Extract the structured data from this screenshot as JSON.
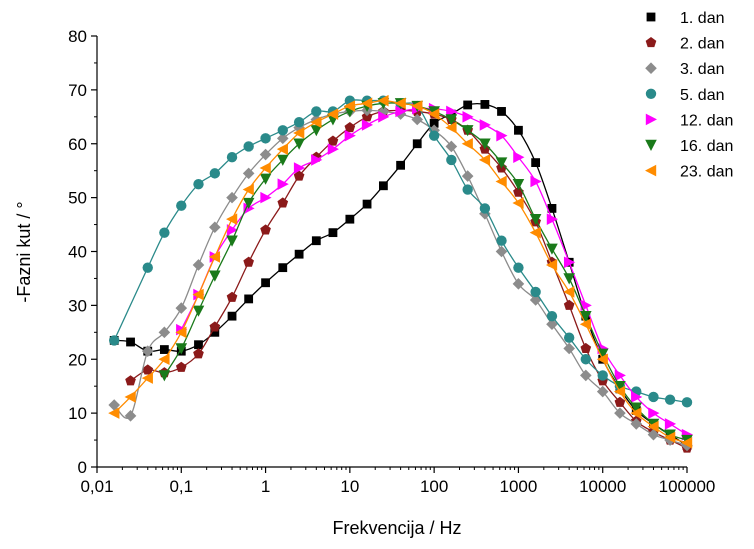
{
  "chart_data": {
    "type": "scatter",
    "xlabel": "Frekvencija / Hz",
    "ylabel": "-Fazni kut / °",
    "x_scale": "log",
    "xlim": [
      0.01,
      100000
    ],
    "ylim": [
      0,
      80
    ],
    "x_ticks": [
      {
        "value": 0.01,
        "label": "0,01"
      },
      {
        "value": 0.1,
        "label": "0,1"
      },
      {
        "value": 1,
        "label": "1"
      },
      {
        "value": 10,
        "label": "10"
      },
      {
        "value": 100,
        "label": "100"
      },
      {
        "value": 1000,
        "label": "1000"
      },
      {
        "value": 10000,
        "label": "10000"
      },
      {
        "value": 100000,
        "label": "100000"
      }
    ],
    "y_ticks": [
      0,
      10,
      20,
      30,
      40,
      50,
      60,
      70,
      80
    ],
    "legend_position": "top-right",
    "series": [
      {
        "name": "1. dan",
        "marker": "square",
        "color": "#000000",
        "points": [
          [
            0.016,
            23.5
          ],
          [
            0.025,
            23.2
          ],
          [
            0.04,
            21.5
          ],
          [
            0.063,
            21.8
          ],
          [
            0.1,
            21.5
          ],
          [
            0.16,
            22.7
          ],
          [
            0.25,
            25
          ],
          [
            0.4,
            28
          ],
          [
            0.63,
            31.2
          ],
          [
            1,
            34.2
          ],
          [
            1.6,
            37
          ],
          [
            2.5,
            39.5
          ],
          [
            4,
            42
          ],
          [
            6.3,
            43.5
          ],
          [
            10,
            46
          ],
          [
            16,
            48.8
          ],
          [
            25,
            52.2
          ],
          [
            40,
            56
          ],
          [
            63,
            60
          ],
          [
            100,
            63.8
          ],
          [
            160,
            65.5
          ],
          [
            250,
            67.2
          ],
          [
            400,
            67.3
          ],
          [
            630,
            66
          ],
          [
            1000,
            62.5
          ],
          [
            1600,
            56.5
          ],
          [
            2500,
            48
          ],
          [
            4000,
            38
          ],
          [
            6300,
            28
          ],
          [
            10000,
            20
          ],
          [
            16000,
            14.5
          ],
          [
            25000,
            10.5
          ],
          [
            40000,
            8
          ],
          [
            63000,
            6
          ],
          [
            100000,
            4
          ]
        ]
      },
      {
        "name": "2. dan",
        "marker": "pentagon",
        "color": "#8b1a1a",
        "points": [
          [
            0.025,
            16
          ],
          [
            0.04,
            18
          ],
          [
            0.063,
            17.5
          ],
          [
            0.1,
            18.5
          ],
          [
            0.16,
            21
          ],
          [
            0.25,
            26
          ],
          [
            0.4,
            31.5
          ],
          [
            0.63,
            38
          ],
          [
            1,
            44
          ],
          [
            1.6,
            49
          ],
          [
            2.5,
            54
          ],
          [
            4,
            57.5
          ],
          [
            6.3,
            60.5
          ],
          [
            10,
            63
          ],
          [
            16,
            65
          ],
          [
            25,
            66
          ],
          [
            40,
            66.2
          ],
          [
            63,
            66
          ],
          [
            100,
            65.5
          ],
          [
            160,
            64.5
          ],
          [
            250,
            62.5
          ],
          [
            400,
            59
          ],
          [
            630,
            55.5
          ],
          [
            1000,
            51
          ],
          [
            1600,
            45.5
          ],
          [
            2500,
            38
          ],
          [
            4000,
            30
          ],
          [
            6300,
            22
          ],
          [
            10000,
            16
          ],
          [
            16000,
            12
          ],
          [
            25000,
            8.5
          ],
          [
            40000,
            6.5
          ],
          [
            63000,
            5
          ],
          [
            100000,
            3.5
          ]
        ]
      },
      {
        "name": "3. dan",
        "marker": "diamond",
        "color": "#8c8c8c",
        "points": [
          [
            0.016,
            11.5
          ],
          [
            0.025,
            9.5
          ],
          [
            0.04,
            21.5
          ],
          [
            0.063,
            25
          ],
          [
            0.1,
            29.5
          ],
          [
            0.16,
            37.5
          ],
          [
            0.25,
            44.5
          ],
          [
            0.4,
            50
          ],
          [
            0.63,
            54.5
          ],
          [
            1,
            58
          ],
          [
            1.6,
            61
          ],
          [
            2.5,
            63
          ],
          [
            4,
            64.5
          ],
          [
            6.3,
            65.5
          ],
          [
            10,
            66
          ],
          [
            16,
            66.2
          ],
          [
            25,
            66
          ],
          [
            40,
            65.5
          ],
          [
            63,
            64.5
          ],
          [
            100,
            62.5
          ],
          [
            160,
            59.5
          ],
          [
            250,
            54
          ],
          [
            400,
            47
          ],
          [
            630,
            40
          ],
          [
            1000,
            34
          ],
          [
            1600,
            31
          ],
          [
            2500,
            26.5
          ],
          [
            4000,
            22
          ],
          [
            6300,
            17
          ],
          [
            10000,
            14
          ],
          [
            16000,
            10
          ],
          [
            25000,
            8
          ],
          [
            40000,
            6
          ],
          [
            63000,
            5
          ],
          [
            100000,
            4
          ]
        ]
      },
      {
        "name": "5. dan",
        "marker": "circle",
        "color": "#2a8a8a",
        "points": [
          [
            0.016,
            23.5
          ],
          [
            0.04,
            37
          ],
          [
            0.063,
            43.5
          ],
          [
            0.1,
            48.5
          ],
          [
            0.16,
            52.5
          ],
          [
            0.25,
            54.5
          ],
          [
            0.4,
            57.5
          ],
          [
            0.63,
            59.5
          ],
          [
            1,
            61
          ],
          [
            1.6,
            62.5
          ],
          [
            2.5,
            64
          ],
          [
            4,
            66
          ],
          [
            6.3,
            66
          ],
          [
            10,
            68
          ],
          [
            16,
            68
          ],
          [
            25,
            68
          ],
          [
            40,
            67.5
          ],
          [
            63,
            67
          ],
          [
            100,
            61.5
          ],
          [
            160,
            57
          ],
          [
            250,
            51.5
          ],
          [
            400,
            48
          ],
          [
            630,
            42
          ],
          [
            1000,
            37
          ],
          [
            1600,
            32.5
          ],
          [
            2500,
            28
          ],
          [
            4000,
            24
          ],
          [
            6300,
            20
          ],
          [
            10000,
            17
          ],
          [
            16000,
            15
          ],
          [
            25000,
            14
          ],
          [
            40000,
            13
          ],
          [
            63000,
            12.5
          ],
          [
            100000,
            12
          ]
        ]
      },
      {
        "name": "12. dan",
        "marker": "triangle-right",
        "color": "#ff00ff",
        "points": [
          [
            0.1,
            25.5
          ],
          [
            0.16,
            32
          ],
          [
            0.25,
            39
          ],
          [
            0.4,
            44
          ],
          [
            0.63,
            48
          ],
          [
            1,
            50
          ],
          [
            1.6,
            52.5
          ],
          [
            2.5,
            55.5
          ],
          [
            4,
            57
          ],
          [
            6.3,
            59
          ],
          [
            10,
            61.5
          ],
          [
            16,
            63.5
          ],
          [
            25,
            65
          ],
          [
            40,
            66
          ],
          [
            63,
            66.5
          ],
          [
            100,
            66.5
          ],
          [
            160,
            66
          ],
          [
            250,
            65
          ],
          [
            400,
            63.5
          ],
          [
            630,
            61.5
          ],
          [
            1000,
            57.5
          ],
          [
            1600,
            53
          ],
          [
            2500,
            46
          ],
          [
            4000,
            38
          ],
          [
            6300,
            30
          ],
          [
            10000,
            22
          ],
          [
            16000,
            17
          ],
          [
            25000,
            13
          ],
          [
            40000,
            10
          ],
          [
            63000,
            8
          ],
          [
            100000,
            6
          ]
        ]
      },
      {
        "name": "16. dan",
        "marker": "triangle-down",
        "color": "#1a7a1a",
        "points": [
          [
            0.063,
            17
          ],
          [
            0.1,
            22
          ],
          [
            0.16,
            29
          ],
          [
            0.25,
            35.5
          ],
          [
            0.4,
            42
          ],
          [
            0.63,
            49
          ],
          [
            1,
            53.5
          ],
          [
            1.6,
            57
          ],
          [
            2.5,
            60
          ],
          [
            4,
            62.5
          ],
          [
            6.3,
            64.5
          ],
          [
            10,
            66
          ],
          [
            16,
            67
          ],
          [
            25,
            67.5
          ],
          [
            40,
            67.5
          ],
          [
            63,
            67
          ],
          [
            100,
            66
          ],
          [
            160,
            64.5
          ],
          [
            250,
            62.5
          ],
          [
            400,
            60
          ],
          [
            630,
            56.5
          ],
          [
            1000,
            52.5
          ],
          [
            1600,
            46
          ],
          [
            2500,
            40.5
          ],
          [
            4000,
            35
          ],
          [
            6300,
            28
          ],
          [
            10000,
            21
          ],
          [
            16000,
            15
          ],
          [
            25000,
            11
          ],
          [
            40000,
            8
          ],
          [
            63000,
            6
          ],
          [
            100000,
            5
          ]
        ]
      },
      {
        "name": "23. dan",
        "marker": "triangle-left",
        "color": "#ff8c00",
        "points": [
          [
            0.016,
            10
          ],
          [
            0.025,
            13
          ],
          [
            0.04,
            16.5
          ],
          [
            0.063,
            20
          ],
          [
            0.1,
            25
          ],
          [
            0.16,
            32
          ],
          [
            0.25,
            39
          ],
          [
            0.4,
            46
          ],
          [
            0.63,
            51.5
          ],
          [
            1,
            55.5
          ],
          [
            1.6,
            59
          ],
          [
            2.5,
            62
          ],
          [
            4,
            64
          ],
          [
            6.3,
            65.5
          ],
          [
            10,
            67
          ],
          [
            16,
            67.5
          ],
          [
            25,
            68
          ],
          [
            40,
            67.5
          ],
          [
            63,
            67
          ],
          [
            100,
            65.5
          ],
          [
            160,
            63
          ],
          [
            250,
            60
          ],
          [
            400,
            57
          ],
          [
            630,
            53
          ],
          [
            1000,
            49
          ],
          [
            1600,
            43.5
          ],
          [
            2500,
            37.5
          ],
          [
            4000,
            32.5
          ],
          [
            6300,
            26.5
          ],
          [
            10000,
            20
          ],
          [
            16000,
            14
          ],
          [
            25000,
            10
          ],
          [
            40000,
            7.5
          ],
          [
            63000,
            5.5
          ],
          [
            100000,
            4.5
          ]
        ]
      }
    ]
  }
}
